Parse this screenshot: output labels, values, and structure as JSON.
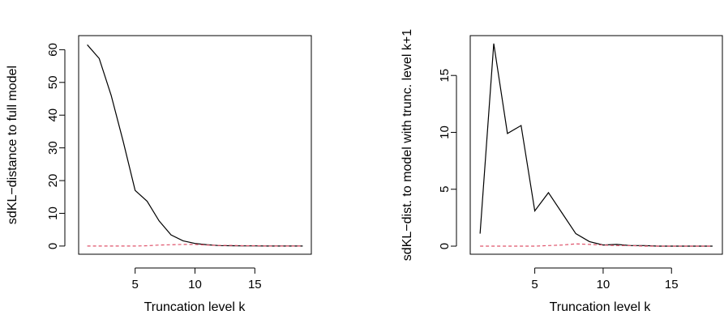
{
  "chart_data": [
    {
      "type": "line",
      "xlabel": "Truncation level k",
      "ylabel": "sdKL−distance to full model",
      "xlim": [
        0.28,
        19.72
      ],
      "ylim": [
        -2.5,
        64.3
      ],
      "xticks": [
        5,
        10,
        15
      ],
      "yticks": [
        0,
        10,
        20,
        30,
        40,
        50,
        60
      ],
      "grid": false,
      "series": [
        {
          "style": "solid",
          "color": "#000000",
          "x": [
            1,
            2,
            3,
            4,
            5,
            6,
            7,
            8,
            9,
            10,
            11,
            12,
            13,
            14,
            15,
            16,
            17,
            18,
            19
          ],
          "y": [
            61.5,
            57.3,
            46.0,
            32.0,
            17.0,
            13.7,
            7.7,
            3.4,
            1.6,
            0.8,
            0.4,
            0.15,
            0.1,
            0.05,
            0.05,
            0.0,
            0.0,
            0.0,
            0.0
          ]
        },
        {
          "style": "dashed",
          "color": "#df536b",
          "x": [
            1,
            2,
            3,
            4,
            5,
            6,
            7,
            8,
            9,
            10,
            11,
            12,
            13,
            14,
            15,
            16,
            17,
            18,
            19
          ],
          "y": [
            0.0,
            0.0,
            0.0,
            0.0,
            0.0,
            0.1,
            0.3,
            0.4,
            0.5,
            0.5,
            0.3,
            0.2,
            0.2,
            0.1,
            0.1,
            0.0,
            0.0,
            0.0,
            0.0
          ]
        }
      ]
    },
    {
      "type": "line",
      "xlabel": "Truncation level k",
      "ylabel": "sdKL−dist. to model with trunc. level k+1",
      "xlim": [
        0.28,
        18.72
      ],
      "ylim": [
        -0.71,
        18.5
      ],
      "xticks": [
        5,
        10,
        15
      ],
      "yticks": [
        0,
        5,
        10,
        15
      ],
      "grid": false,
      "series": [
        {
          "style": "solid",
          "color": "#000000",
          "x": [
            1,
            2,
            3,
            4,
            5,
            6,
            7,
            8,
            9,
            10,
            11,
            12,
            13,
            14,
            15,
            16,
            17,
            18
          ],
          "y": [
            1.1,
            17.8,
            9.9,
            10.6,
            3.1,
            4.7,
            2.9,
            1.1,
            0.4,
            0.1,
            0.15,
            0.05,
            0.05,
            0.0,
            0.0,
            0.0,
            0.0,
            0.0
          ]
        },
        {
          "style": "dashed",
          "color": "#df536b",
          "x": [
            1,
            2,
            3,
            4,
            5,
            6,
            7,
            8,
            9,
            10,
            11,
            12,
            13,
            14,
            15,
            16,
            17,
            18
          ],
          "y": [
            0.0,
            0.0,
            0.0,
            0.0,
            0.0,
            0.05,
            0.1,
            0.2,
            0.15,
            0.1,
            0.05,
            0.05,
            0.0,
            0.0,
            0.0,
            0.0,
            0.0,
            0.0
          ]
        }
      ]
    }
  ]
}
